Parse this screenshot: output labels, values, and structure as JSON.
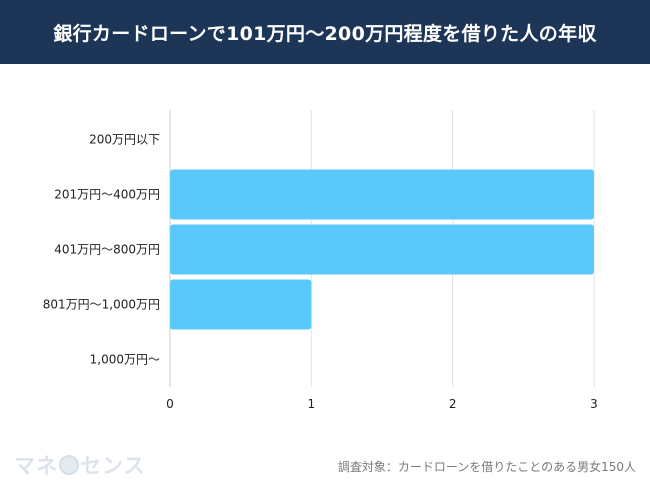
{
  "header": {
    "title": "銀行カードローンで101万円〜200万円程度を借りた人の年収"
  },
  "chart_data": {
    "type": "bar",
    "orientation": "horizontal",
    "title": "銀行カードローンで101万円〜200万円程度を借りた人の年収",
    "categories": [
      "200万円以下",
      "201万円〜400万円",
      "401万円〜800万円",
      "801万円〜1,000万円",
      "1,000万円〜"
    ],
    "values": [
      0,
      3,
      3,
      1,
      0
    ],
    "xlim": [
      0,
      3
    ],
    "xticks": [
      0,
      1,
      2,
      3
    ],
    "grid": true,
    "bar_color": "#5bc8fb"
  },
  "footer": {
    "logo_left": "マネ",
    "logo_right": "センス",
    "source": "調査対象：カードローンを借りたことのある男女150人"
  },
  "colors": {
    "header_bg": "#1d3557",
    "bar": "#5bc8fb",
    "grid": "#e2e2e2"
  }
}
